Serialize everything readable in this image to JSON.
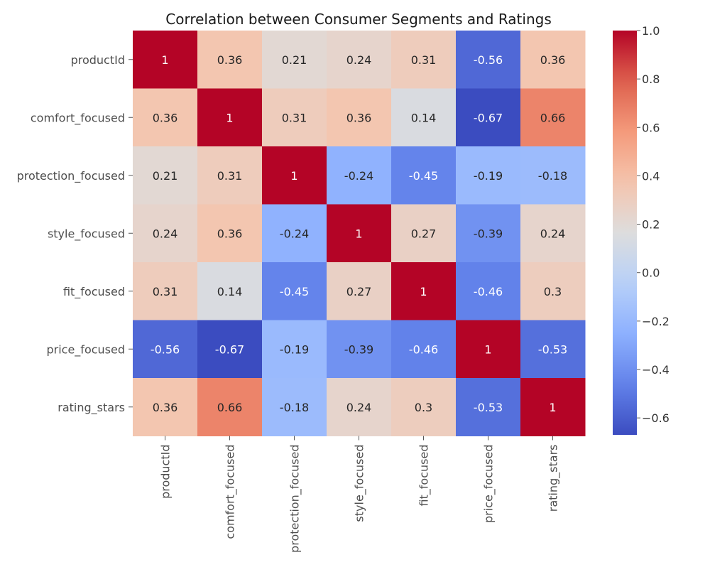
{
  "chart_data": {
    "type": "heatmap",
    "title": "Correlation between Consumer Segments and Ratings",
    "xlabel": "",
    "ylabel": "",
    "row_labels": [
      "productId",
      "comfort_focused",
      "protection_focused",
      "style_focused",
      "fit_focused",
      "price_focused",
      "rating_stars"
    ],
    "col_labels": [
      "productId",
      "comfort_focused",
      "protection_focused",
      "style_focused",
      "fit_focused",
      "price_focused",
      "rating_stars"
    ],
    "values": [
      [
        1,
        0.36,
        0.21,
        0.24,
        0.31,
        -0.56,
        0.36
      ],
      [
        0.36,
        1,
        0.31,
        0.36,
        0.14,
        -0.67,
        0.66
      ],
      [
        0.21,
        0.31,
        1,
        -0.24,
        -0.45,
        -0.19,
        -0.18
      ],
      [
        0.24,
        0.36,
        -0.24,
        1,
        0.27,
        -0.39,
        0.24
      ],
      [
        0.31,
        0.14,
        -0.45,
        0.27,
        1,
        -0.46,
        0.3
      ],
      [
        -0.56,
        -0.67,
        -0.19,
        -0.39,
        -0.46,
        1,
        -0.53
      ],
      [
        0.36,
        0.66,
        -0.18,
        0.24,
        0.3,
        -0.53,
        1
      ]
    ],
    "colormap": "coolwarm",
    "color_range": [
      -0.67,
      1.0
    ],
    "colorbar_ticks": [
      1.0,
      0.8,
      0.6,
      0.4,
      0.2,
      0.0,
      -0.2,
      -0.4,
      -0.6
    ],
    "colorbar_tick_labels": [
      "1.0",
      "0.8",
      "0.6",
      "0.4",
      "0.2",
      "0.0",
      "−0.2",
      "−0.4",
      "−0.6"
    ],
    "legend": "right colorbar",
    "grid": false
  }
}
